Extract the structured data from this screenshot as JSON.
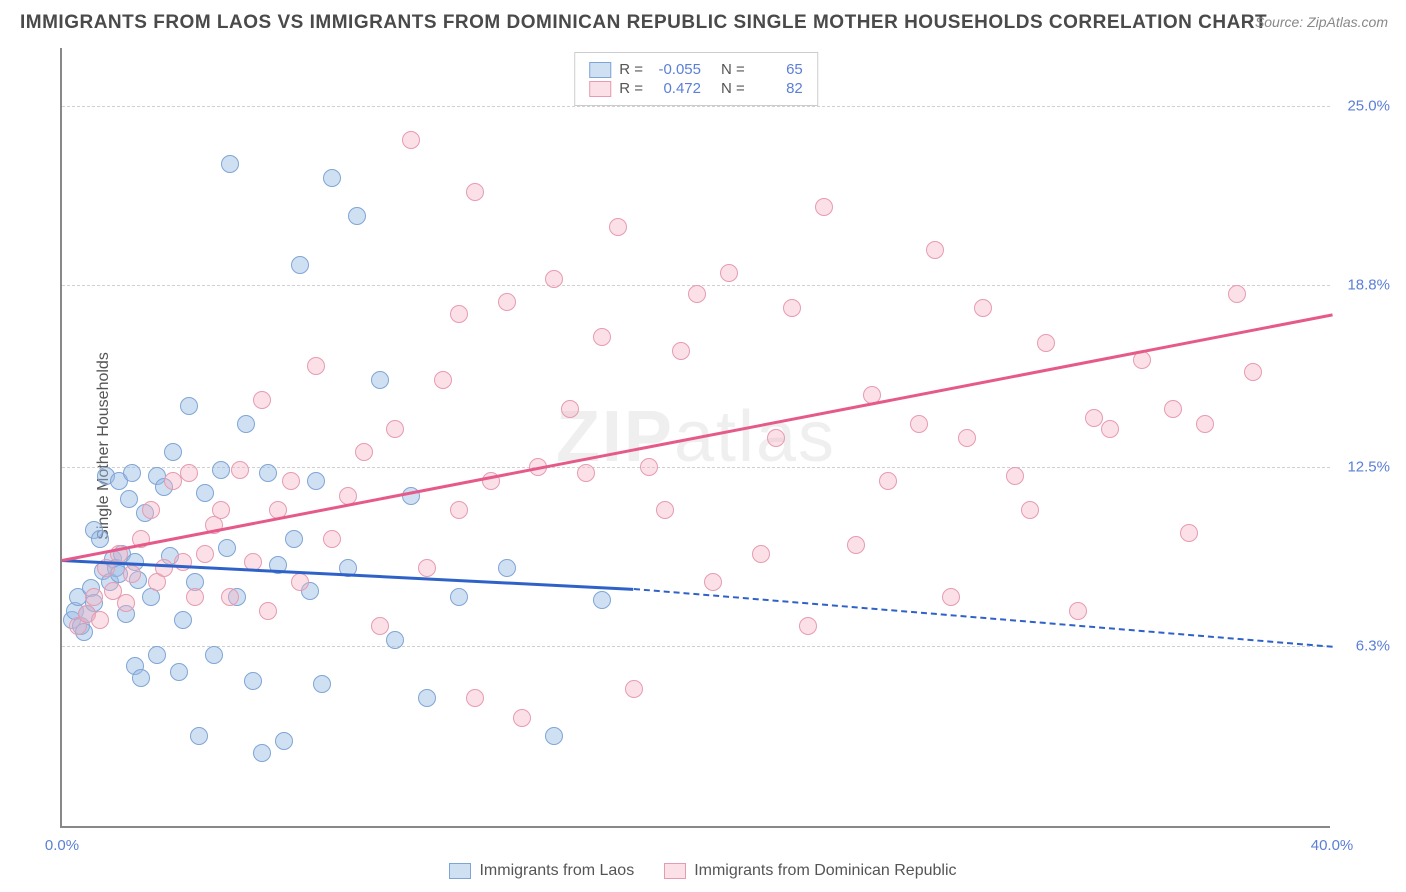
{
  "title": "IMMIGRANTS FROM LAOS VS IMMIGRANTS FROM DOMINICAN REPUBLIC SINGLE MOTHER HOUSEHOLDS CORRELATION CHART",
  "source": "Source: ZipAtlas.com",
  "y_axis_label": "Single Mother Households",
  "watermark_bold": "ZIP",
  "watermark_rest": "atlas",
  "chart": {
    "type": "scatter",
    "background_color": "#ffffff",
    "grid_color": "#d0d0d0",
    "axis_color": "#888888",
    "tick_label_color": "#5b7fd6",
    "tick_fontsize": 15,
    "title_fontsize": 19,
    "title_color": "#4a4a4a",
    "marker_radius": 9,
    "xlim": [
      0,
      40
    ],
    "ylim": [
      0,
      27
    ],
    "x_ticks": [
      {
        "value": 0,
        "label": "0.0%"
      },
      {
        "value": 40,
        "label": "40.0%"
      }
    ],
    "y_ticks": [
      {
        "value": 6.3,
        "label": "6.3%"
      },
      {
        "value": 12.5,
        "label": "12.5%"
      },
      {
        "value": 18.8,
        "label": "18.8%"
      },
      {
        "value": 25.0,
        "label": "25.0%"
      }
    ],
    "series": [
      {
        "name": "Immigrants from Laos",
        "fill_color": "rgba(151,187,229,0.45)",
        "stroke_color": "#7fa5d6",
        "trend_color": "#2f62c9",
        "R": "-0.055",
        "N": "65",
        "trend": {
          "x1": 0,
          "y1": 9.3,
          "x2_solid": 18,
          "y2_solid": 8.3,
          "x2": 40,
          "y2": 6.3
        },
        "points": [
          [
            0.3,
            7.2
          ],
          [
            0.4,
            7.5
          ],
          [
            0.5,
            8.0
          ],
          [
            0.6,
            7.0
          ],
          [
            0.7,
            6.8
          ],
          [
            0.8,
            7.4
          ],
          [
            0.9,
            8.3
          ],
          [
            1.0,
            7.8
          ],
          [
            1.0,
            10.3
          ],
          [
            1.2,
            10.0
          ],
          [
            1.3,
            8.9
          ],
          [
            1.4,
            12.2
          ],
          [
            1.5,
            8.5
          ],
          [
            1.6,
            9.3
          ],
          [
            1.7,
            9.0
          ],
          [
            1.8,
            12.0
          ],
          [
            1.8,
            8.8
          ],
          [
            1.9,
            9.5
          ],
          [
            2.0,
            7.4
          ],
          [
            2.1,
            11.4
          ],
          [
            2.2,
            12.3
          ],
          [
            2.3,
            9.2
          ],
          [
            2.3,
            5.6
          ],
          [
            2.4,
            8.6
          ],
          [
            2.5,
            5.2
          ],
          [
            2.6,
            10.9
          ],
          [
            2.8,
            8.0
          ],
          [
            3.0,
            12.2
          ],
          [
            3.0,
            6.0
          ],
          [
            3.2,
            11.8
          ],
          [
            3.4,
            9.4
          ],
          [
            3.5,
            13.0
          ],
          [
            3.7,
            5.4
          ],
          [
            3.8,
            7.2
          ],
          [
            4.0,
            14.6
          ],
          [
            4.2,
            8.5
          ],
          [
            4.3,
            3.2
          ],
          [
            4.5,
            11.6
          ],
          [
            4.8,
            6.0
          ],
          [
            5.0,
            12.4
          ],
          [
            5.2,
            9.7
          ],
          [
            5.3,
            23.0
          ],
          [
            5.5,
            8.0
          ],
          [
            5.8,
            14.0
          ],
          [
            6.0,
            5.1
          ],
          [
            6.3,
            2.6
          ],
          [
            6.5,
            12.3
          ],
          [
            6.8,
            9.1
          ],
          [
            7.0,
            3.0
          ],
          [
            7.3,
            10.0
          ],
          [
            7.5,
            19.5
          ],
          [
            7.8,
            8.2
          ],
          [
            8.0,
            12.0
          ],
          [
            8.2,
            5.0
          ],
          [
            8.5,
            22.5
          ],
          [
            9.0,
            9.0
          ],
          [
            9.3,
            21.2
          ],
          [
            10.0,
            15.5
          ],
          [
            10.5,
            6.5
          ],
          [
            11.0,
            11.5
          ],
          [
            11.5,
            4.5
          ],
          [
            12.5,
            8.0
          ],
          [
            14.0,
            9.0
          ],
          [
            15.5,
            3.2
          ],
          [
            17.0,
            7.9
          ]
        ]
      },
      {
        "name": "Immigrants from Dominican Republic",
        "fill_color": "rgba(244,177,194,0.40)",
        "stroke_color": "#e79bb0",
        "trend_color": "#e65a8a",
        "R": "0.472",
        "N": "82",
        "trend": {
          "x1": 0,
          "y1": 9.3,
          "x2_solid": 40,
          "y2_solid": 17.8,
          "x2": 40,
          "y2": 17.8
        },
        "points": [
          [
            0.5,
            7.0
          ],
          [
            0.8,
            7.4
          ],
          [
            1.0,
            8.0
          ],
          [
            1.2,
            7.2
          ],
          [
            1.4,
            9.0
          ],
          [
            1.6,
            8.2
          ],
          [
            1.8,
            9.5
          ],
          [
            2.0,
            7.8
          ],
          [
            2.2,
            8.8
          ],
          [
            2.5,
            10.0
          ],
          [
            2.8,
            11.0
          ],
          [
            3.0,
            8.5
          ],
          [
            3.2,
            9.0
          ],
          [
            3.5,
            12.0
          ],
          [
            3.8,
            9.2
          ],
          [
            4.0,
            12.3
          ],
          [
            4.2,
            8.0
          ],
          [
            4.5,
            9.5
          ],
          [
            4.8,
            10.5
          ],
          [
            5.0,
            11.0
          ],
          [
            5.3,
            8.0
          ],
          [
            5.6,
            12.4
          ],
          [
            6.0,
            9.2
          ],
          [
            6.3,
            14.8
          ],
          [
            6.5,
            7.5
          ],
          [
            6.8,
            11.0
          ],
          [
            7.2,
            12.0
          ],
          [
            7.5,
            8.5
          ],
          [
            8.0,
            16.0
          ],
          [
            8.5,
            10.0
          ],
          [
            9.0,
            11.5
          ],
          [
            9.5,
            13.0
          ],
          [
            10.0,
            7.0
          ],
          [
            10.5,
            13.8
          ],
          [
            11.0,
            23.8
          ],
          [
            11.5,
            9.0
          ],
          [
            12.0,
            15.5
          ],
          [
            12.5,
            17.8
          ],
          [
            12.5,
            11.0
          ],
          [
            13.0,
            4.5
          ],
          [
            13.0,
            22.0
          ],
          [
            13.5,
            12.0
          ],
          [
            14.0,
            18.2
          ],
          [
            14.5,
            3.8
          ],
          [
            15.0,
            12.5
          ],
          [
            15.5,
            19.0
          ],
          [
            16.0,
            14.5
          ],
          [
            16.5,
            12.3
          ],
          [
            17.0,
            17.0
          ],
          [
            17.5,
            20.8
          ],
          [
            18.0,
            4.8
          ],
          [
            18.5,
            12.5
          ],
          [
            19.0,
            11.0
          ],
          [
            19.5,
            16.5
          ],
          [
            20.0,
            18.5
          ],
          [
            20.5,
            8.5
          ],
          [
            21.0,
            19.2
          ],
          [
            22.0,
            9.5
          ],
          [
            22.5,
            13.5
          ],
          [
            23.0,
            18.0
          ],
          [
            23.5,
            7.0
          ],
          [
            24.0,
            21.5
          ],
          [
            25.0,
            9.8
          ],
          [
            25.5,
            15.0
          ],
          [
            26.0,
            12.0
          ],
          [
            27.0,
            14.0
          ],
          [
            27.5,
            20.0
          ],
          [
            28.0,
            8.0
          ],
          [
            28.5,
            13.5
          ],
          [
            29.0,
            18.0
          ],
          [
            30.0,
            12.2
          ],
          [
            30.5,
            11.0
          ],
          [
            31.0,
            16.8
          ],
          [
            32.0,
            7.5
          ],
          [
            32.5,
            14.2
          ],
          [
            33.0,
            13.8
          ],
          [
            34.0,
            16.2
          ],
          [
            35.0,
            14.5
          ],
          [
            35.5,
            10.2
          ],
          [
            36.0,
            14.0
          ],
          [
            37.0,
            18.5
          ],
          [
            37.5,
            15.8
          ]
        ]
      }
    ]
  },
  "legend_top": {
    "R_label": "R =",
    "N_label": "N ="
  }
}
